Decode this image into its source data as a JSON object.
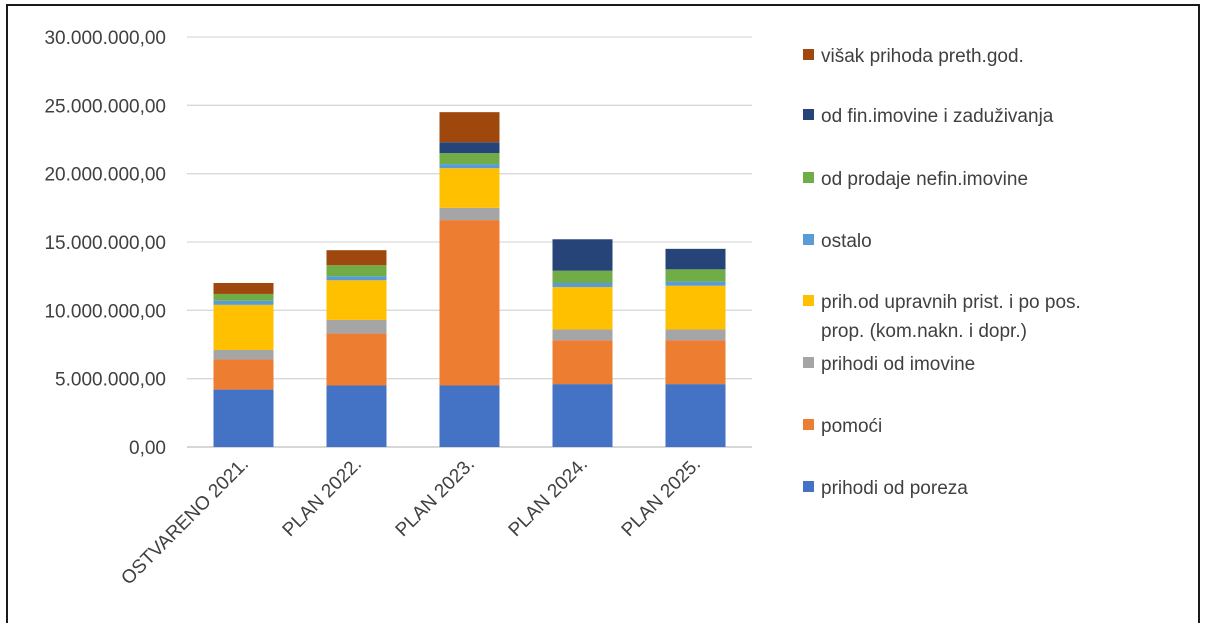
{
  "chart_data": {
    "type": "bar",
    "stacked": true,
    "title": "",
    "xlabel": "",
    "ylabel": "",
    "ylim": [
      0,
      30000000
    ],
    "yticks": [
      0,
      5000000,
      10000000,
      15000000,
      20000000,
      25000000,
      30000000
    ],
    "ytick_labels": [
      "0,00",
      "5.000.000,00",
      "10.000.000,00",
      "15.000.000,00",
      "20.000.000,00",
      "25.000.000,00",
      "30.000.000,00"
    ],
    "grid": true,
    "legend_position": "right",
    "categories": [
      "OSTVARENO 2021.",
      "PLAN 2022.",
      "PLAN 2023.",
      "PLAN 2024.",
      "PLAN 2025."
    ],
    "series": [
      {
        "name": "prihodi od poreza",
        "color": "#4472C4",
        "values": [
          4200000,
          4500000,
          4500000,
          4600000,
          4600000
        ]
      },
      {
        "name": "pomoći",
        "color": "#ED7D31",
        "values": [
          2200000,
          3800000,
          12100000,
          3200000,
          3200000
        ]
      },
      {
        "name": "prihodi od imovine",
        "color": "#A5A5A5",
        "values": [
          700000,
          1000000,
          900000,
          800000,
          800000
        ]
      },
      {
        "name": [
          "prih.od upravnih prist. i po pos.",
          "prop. (kom.nakn. i dopr.)"
        ],
        "color": "#FFC000",
        "values": [
          3300000,
          2900000,
          2900000,
          3100000,
          3200000
        ]
      },
      {
        "name": "ostalo",
        "color": "#5B9BD5",
        "values": [
          300000,
          300000,
          300000,
          300000,
          300000
        ]
      },
      {
        "name": "od prodaje nefin.imovine",
        "color": "#70AD47",
        "values": [
          500000,
          800000,
          800000,
          900000,
          900000
        ]
      },
      {
        "name": "od fin.imovine i zaduživanja",
        "color": "#264478",
        "values": [
          0,
          0,
          800000,
          2300000,
          1500000
        ]
      },
      {
        "name": "višak prihoda preth.god.",
        "color": "#9E480E",
        "values": [
          800000,
          1100000,
          2200000,
          0,
          0
        ]
      }
    ]
  }
}
